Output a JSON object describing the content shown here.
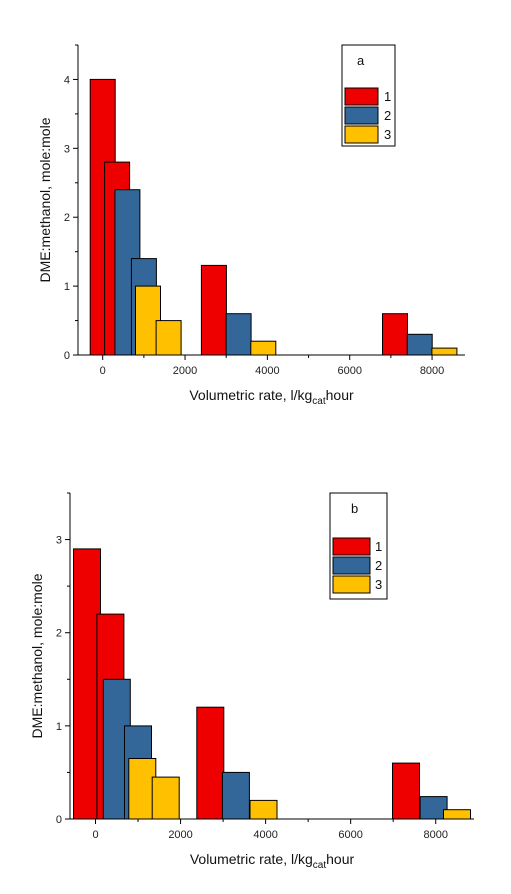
{
  "chart_data": [
    {
      "type": "bar",
      "panel_label": "a",
      "xlabel": "Volumetric rate, l/kg",
      "xlabel_sub": "cat",
      "xlabel_tail": "hour",
      "ylabel": "DME:methanol, mole:mole",
      "xlim": [
        -600,
        8800
      ],
      "ylim": [
        0,
        4.5
      ],
      "xticks": [
        0,
        2000,
        4000,
        6000,
        8000
      ],
      "yticks": [
        0,
        1,
        2,
        3,
        4
      ],
      "xtick_labels": [
        "0",
        "2000",
        "4000",
        "6000",
        "8000"
      ],
      "ytick_labels": [
        "0",
        "1",
        "2",
        "3",
        "4"
      ],
      "legend_position": "top-right",
      "series": [
        {
          "name": "1",
          "color": "#ee0000",
          "points": [
            {
              "x": 0,
              "y": 4.0
            },
            {
              "x": 350,
              "y": 2.8
            },
            {
              "x": 2700,
              "y": 1.3
            },
            {
              "x": 7100,
              "y": 0.6
            }
          ]
        },
        {
          "name": "2",
          "color": "#336699",
          "points": [
            {
              "x": 600,
              "y": 2.4
            },
            {
              "x": 1000,
              "y": 1.4
            },
            {
              "x": 3300,
              "y": 0.6
            },
            {
              "x": 7700,
              "y": 0.3
            }
          ]
        },
        {
          "name": "3",
          "color": "#ffc000",
          "points": [
            {
              "x": 1100,
              "y": 1.0
            },
            {
              "x": 1600,
              "y": 0.5
            },
            {
              "x": 3900,
              "y": 0.2
            },
            {
              "x": 8300,
              "y": 0.1
            }
          ]
        }
      ]
    },
    {
      "type": "bar",
      "panel_label": "b",
      "xlabel": "Volumetric rate, l/kg",
      "xlabel_sub": "cat",
      "xlabel_tail": "hour",
      "ylabel": "DME:methanol, mole:mole",
      "xlim": [
        -600,
        8900
      ],
      "ylim": [
        0,
        3.5
      ],
      "xticks": [
        0,
        2000,
        4000,
        6000,
        8000
      ],
      "yticks": [
        0,
        1,
        2,
        3
      ],
      "xtick_labels": [
        "0",
        "2000",
        "4000",
        "6000",
        "8000"
      ],
      "ytick_labels": [
        "0",
        "1",
        "2",
        "3"
      ],
      "legend_position": "top-right",
      "series": [
        {
          "name": "1",
          "color": "#ee0000",
          "points": [
            {
              "x": -200,
              "y": 2.9
            },
            {
              "x": 350,
              "y": 2.2
            },
            {
              "x": 2700,
              "y": 1.2
            },
            {
              "x": 7300,
              "y": 0.6
            }
          ]
        },
        {
          "name": "2",
          "color": "#336699",
          "points": [
            {
              "x": 500,
              "y": 1.5
            },
            {
              "x": 1000,
              "y": 1.0
            },
            {
              "x": 3300,
              "y": 0.5
            },
            {
              "x": 7950,
              "y": 0.24
            }
          ]
        },
        {
          "name": "3",
          "color": "#ffc000",
          "points": [
            {
              "x": 1100,
              "y": 0.65
            },
            {
              "x": 1650,
              "y": 0.45
            },
            {
              "x": 3950,
              "y": 0.2
            },
            {
              "x": 8500,
              "y": 0.1
            }
          ]
        }
      ]
    }
  ]
}
